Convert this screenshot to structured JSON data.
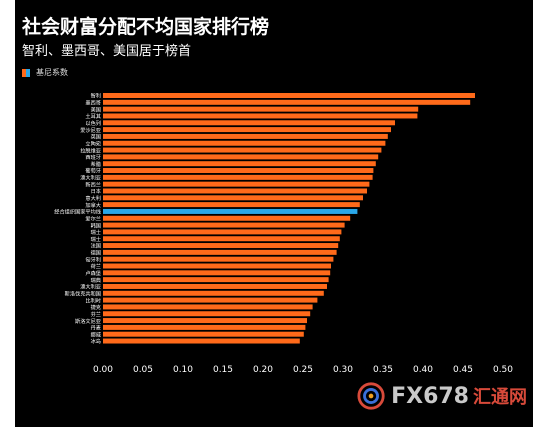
{
  "title": "社会财富分配不均国家排行榜",
  "subtitle": "智利、墨西哥、美国居于榜首",
  "legend": {
    "label": "基尼系数"
  },
  "colors": {
    "bar": "#ff6a1a",
    "highlight": "#2aa7e8",
    "background": "#000000"
  },
  "watermark": {
    "text": "FX678",
    "text_cn": "汇通网"
  },
  "chart_data": {
    "type": "bar",
    "orientation": "horizontal",
    "categories": [
      "智利",
      "墨西哥",
      "美国",
      "土耳其",
      "以色列",
      "爱沙尼亚",
      "英国",
      "立陶宛",
      "拉脱维亚",
      "西班牙",
      "希腊",
      "葡萄牙",
      "澳大利亚",
      "新西兰",
      "日本",
      "意大利",
      "加拿大",
      "经合组织国家平均线",
      "爱尔兰",
      "韩国",
      "瑞士",
      "瑞士",
      "法国",
      "德国",
      "匈牙利",
      "荷兰",
      "卢森堡",
      "瑞典",
      "澳大利亚",
      "斯洛伐克共和国",
      "比利时",
      "捷克",
      "芬兰",
      "斯洛文尼亚",
      "丹麦",
      "挪威",
      "冰岛"
    ],
    "values": [
      0.465,
      0.459,
      0.394,
      0.393,
      0.365,
      0.36,
      0.356,
      0.353,
      0.348,
      0.344,
      0.341,
      0.338,
      0.337,
      0.333,
      0.33,
      0.325,
      0.321,
      0.318,
      0.309,
      0.302,
      0.298,
      0.296,
      0.294,
      0.292,
      0.288,
      0.285,
      0.284,
      0.282,
      0.28,
      0.276,
      0.268,
      0.262,
      0.259,
      0.255,
      0.253,
      0.251,
      0.246
    ],
    "highlight_category": "经合组织国家平均线",
    "xticks": [
      "0.00",
      "0.05",
      "0.10",
      "0.15",
      "0.20",
      "0.25",
      "0.30",
      "0.35",
      "0.40",
      "0.45",
      "0.50"
    ],
    "xlim": [
      0,
      0.5
    ],
    "grid": false,
    "legend_position": "top-left"
  }
}
